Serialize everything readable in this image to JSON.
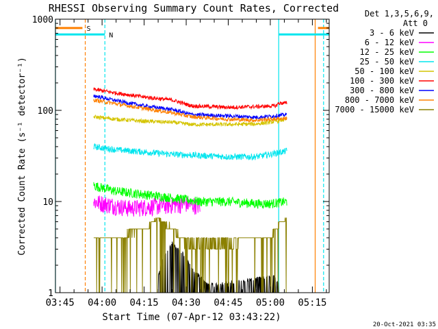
{
  "chart_data": {
    "type": "line",
    "title": "RHESSI Observing Summary Count Rates, Corrected",
    "xlabel": "Start Time (07-Apr-12 03:43:22)",
    "ylabel": "Corrected Count Rate (s⁻¹ detector⁻¹)",
    "y_scale": "log",
    "ylim": [
      1,
      1000
    ],
    "xlim": [
      "03:43:22",
      "05:21:00"
    ],
    "x_ticks": [
      "03:45",
      "04:00",
      "04:15",
      "04:30",
      "04:45",
      "05:00",
      "05:15"
    ],
    "y_ticks": [
      "1",
      "10",
      "100",
      "1000"
    ],
    "legend_header": [
      "Det 1,3,5,6,9,",
      "Att 0"
    ],
    "legend_placement": "right",
    "footer_timestamp": "20-Oct-2021 03:35",
    "flag_bars": [
      {
        "label": "S",
        "color": "#ff8000",
        "start": "03:43:22",
        "end": "03:53:00",
        "level": 800
      },
      {
        "label": "S",
        "color": "#ff8000",
        "start": "05:17:00",
        "end": "05:21:00",
        "level": 800
      },
      {
        "label": "N",
        "color": "#00e5ee",
        "start": "03:43:22",
        "end": "04:01:00",
        "level": 680
      },
      {
        "label": "N",
        "color": "#00e5ee",
        "start": "05:03:00",
        "end": "05:21:00",
        "level": 680
      }
    ],
    "vertical_markers": [
      {
        "time": "03:43:22",
        "color": "#00e5ee",
        "style": "solid"
      },
      {
        "time": "03:54:00",
        "color": "#ff8000",
        "style": "dashed"
      },
      {
        "time": "04:01:00",
        "color": "#00e5ee",
        "style": "dashed"
      },
      {
        "time": "05:03:00",
        "color": "#00e5ee",
        "style": "solid"
      },
      {
        "time": "05:16:00",
        "color": "#ff8000",
        "style": "solid"
      },
      {
        "time": "05:19:00",
        "color": "#00e5ee",
        "style": "dashed"
      }
    ],
    "data_start": "03:57:00",
    "data_end": "05:06:30",
    "series": [
      {
        "name": "3 - 6 keV",
        "color": "#000000",
        "x": [
          "04:20",
          "04:22",
          "04:25",
          "04:27",
          "04:30",
          "04:32",
          "04:35",
          "04:38",
          "05:01",
          "05:03"
        ],
        "values": [
          1.5,
          2.5,
          3.5,
          3.0,
          2.5,
          1.8,
          1.5,
          1.2,
          1.5,
          1.3
        ]
      },
      {
        "name": "6 - 12 keV",
        "color": "#ff00ff",
        "x": [
          "03:57",
          "04:05",
          "04:10",
          "04:20",
          "04:30",
          "04:35"
        ],
        "values": [
          10,
          9,
          8.5,
          9,
          9.5,
          9
        ]
      },
      {
        "name": "12 - 25 keV",
        "color": "#00ff00",
        "x": [
          "03:57",
          "04:05",
          "04:15",
          "04:25",
          "04:35",
          "04:45",
          "04:55",
          "05:00",
          "05:06"
        ],
        "values": [
          15,
          13,
          12,
          11,
          10,
          10,
          9.5,
          9.5,
          10
        ]
      },
      {
        "name": "25 - 50 keV",
        "color": "#00e5ee",
        "x": [
          "03:57",
          "04:05",
          "04:15",
          "04:25",
          "04:35",
          "04:45",
          "04:55",
          "05:00",
          "05:06"
        ],
        "values": [
          40,
          37,
          35,
          33,
          32,
          31,
          31,
          33,
          36
        ]
      },
      {
        "name": "50 - 100 keV",
        "color": "#d4c400",
        "x": [
          "03:57",
          "04:05",
          "04:15",
          "04:25",
          "04:32",
          "04:45",
          "04:55",
          "05:00",
          "05:06"
        ],
        "values": [
          85,
          80,
          76,
          74,
          70,
          70,
          71,
          74,
          80
        ]
      },
      {
        "name": "100 - 300 keV",
        "color": "#ff0000",
        "x": [
          "03:57",
          "04:05",
          "04:15",
          "04:25",
          "04:32",
          "04:45",
          "04:55",
          "05:02",
          "05:03",
          "05:06"
        ],
        "values": [
          170,
          155,
          140,
          130,
          112,
          108,
          110,
          112,
          120,
          120
        ]
      },
      {
        "name": "300 - 800 keV",
        "color": "#0000ff",
        "x": [
          "03:57",
          "04:05",
          "04:15",
          "04:25",
          "04:32",
          "04:45",
          "04:55",
          "05:00",
          "05:06"
        ],
        "values": [
          145,
          128,
          112,
          102,
          90,
          87,
          84,
          86,
          90
        ]
      },
      {
        "name": "800 - 7000 keV",
        "color": "#ff8000",
        "x": [
          "03:57",
          "04:05",
          "04:15",
          "04:25",
          "04:32",
          "04:45",
          "04:55",
          "05:00",
          "05:06"
        ],
        "values": [
          130,
          118,
          105,
          94,
          85,
          80,
          78,
          80,
          82
        ]
      },
      {
        "name": "7000 - 15000 keV",
        "color": "#8b8000",
        "x": [
          "03:57",
          "04:05",
          "04:15",
          "04:20",
          "04:25",
          "04:30",
          "04:45",
          "05:00",
          "05:03",
          "05:06"
        ],
        "values": [
          4,
          4,
          5,
          6.5,
          5,
          3.5,
          3.5,
          4,
          5.5,
          6.5
        ]
      }
    ]
  }
}
